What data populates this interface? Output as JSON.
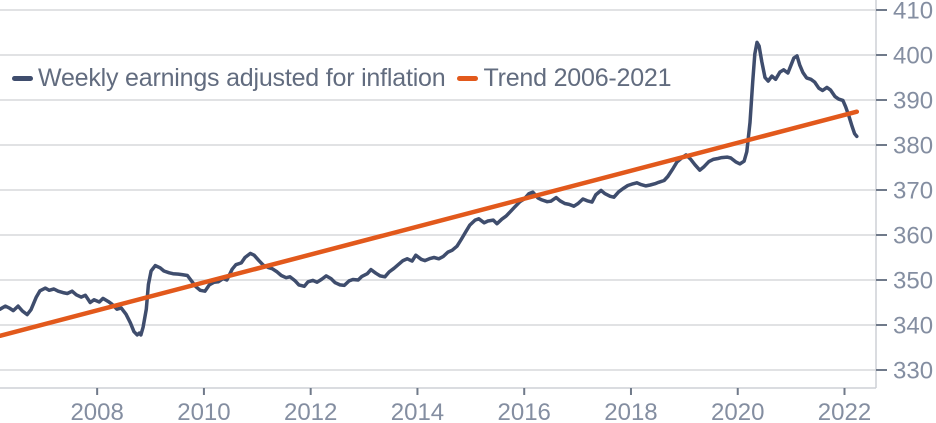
{
  "legend": {
    "series1_label": "Weekly earnings adjusted for inflation",
    "series2_label": "Trend 2006-2021"
  },
  "colors": {
    "earnings_line": "#3f4d6d",
    "trend_line": "#e2591c",
    "gridline": "#d7d9dc",
    "axis_line": "#cdd0d5",
    "tick": "#707a8a",
    "tick_label": "#848ea1",
    "legend_text": "#626c7f",
    "background": "#ffffff"
  },
  "chart_data": {
    "type": "line",
    "title": "",
    "xlabel": "",
    "ylabel": "",
    "grid": true,
    "legend_position": "top-left",
    "x_axis": {
      "range": [
        2006.18,
        2022.59
      ],
      "ticks": [
        2008,
        2010,
        2012,
        2014,
        2016,
        2018,
        2020,
        2022
      ],
      "tick_labels": [
        "2008",
        "2010",
        "2012",
        "2014",
        "2016",
        "2018",
        "2020",
        "2022"
      ]
    },
    "y_axis": {
      "side": "right",
      "range": [
        326,
        412.22
      ],
      "ticks": [
        330,
        340,
        350,
        360,
        370,
        380,
        390,
        400,
        410
      ],
      "tick_labels": [
        "330",
        "340",
        "350",
        "360",
        "370",
        "380",
        "390",
        "400",
        "410"
      ]
    },
    "series": [
      {
        "name": "Weekly earnings adjusted for inflation",
        "color": "#3f4d6d",
        "width": 3.5,
        "points": [
          [
            2006.18,
            343.5
          ],
          [
            2006.28,
            344.2
          ],
          [
            2006.35,
            343.8
          ],
          [
            2006.43,
            343.2
          ],
          [
            2006.52,
            344.2
          ],
          [
            2006.6,
            343.1
          ],
          [
            2006.69,
            342.3
          ],
          [
            2006.76,
            343.4
          ],
          [
            2006.86,
            346.2
          ],
          [
            2006.93,
            347.6
          ],
          [
            2007.03,
            348.2
          ],
          [
            2007.1,
            347.7
          ],
          [
            2007.19,
            348.0
          ],
          [
            2007.27,
            347.5
          ],
          [
            2007.36,
            347.2
          ],
          [
            2007.44,
            347.0
          ],
          [
            2007.53,
            347.5
          ],
          [
            2007.61,
            346.7
          ],
          [
            2007.7,
            346.2
          ],
          [
            2007.78,
            346.6
          ],
          [
            2007.87,
            345.0
          ],
          [
            2007.94,
            345.6
          ],
          [
            2008.04,
            345.1
          ],
          [
            2008.11,
            345.9
          ],
          [
            2008.21,
            345.2
          ],
          [
            2008.28,
            344.6
          ],
          [
            2008.37,
            343.5
          ],
          [
            2008.45,
            343.8
          ],
          [
            2008.54,
            342.4
          ],
          [
            2008.62,
            340.5
          ],
          [
            2008.69,
            338.5
          ],
          [
            2008.75,
            337.8
          ],
          [
            2008.79,
            338.2
          ],
          [
            2008.82,
            337.8
          ],
          [
            2008.86,
            339.5
          ],
          [
            2008.92,
            343.5
          ],
          [
            2008.96,
            349.0
          ],
          [
            2009.01,
            352.0
          ],
          [
            2009.09,
            353.2
          ],
          [
            2009.18,
            352.7
          ],
          [
            2009.25,
            352.0
          ],
          [
            2009.35,
            351.6
          ],
          [
            2009.42,
            351.4
          ],
          [
            2009.52,
            351.3
          ],
          [
            2009.59,
            351.2
          ],
          [
            2009.69,
            351.0
          ],
          [
            2009.76,
            349.9
          ],
          [
            2009.85,
            348.5
          ],
          [
            2009.93,
            347.7
          ],
          [
            2010.02,
            347.5
          ],
          [
            2010.1,
            348.9
          ],
          [
            2010.19,
            349.5
          ],
          [
            2010.27,
            349.6
          ],
          [
            2010.36,
            350.3
          ],
          [
            2010.43,
            350.0
          ],
          [
            2010.53,
            352.4
          ],
          [
            2010.6,
            353.4
          ],
          [
            2010.7,
            353.8
          ],
          [
            2010.77,
            355.0
          ],
          [
            2010.87,
            355.9
          ],
          [
            2010.94,
            355.5
          ],
          [
            2011.03,
            354.3
          ],
          [
            2011.11,
            353.3
          ],
          [
            2011.2,
            352.8
          ],
          [
            2011.28,
            352.5
          ],
          [
            2011.37,
            351.8
          ],
          [
            2011.45,
            351.0
          ],
          [
            2011.54,
            350.5
          ],
          [
            2011.61,
            350.7
          ],
          [
            2011.71,
            349.8
          ],
          [
            2011.78,
            348.9
          ],
          [
            2011.88,
            348.6
          ],
          [
            2011.95,
            349.6
          ],
          [
            2012.04,
            349.9
          ],
          [
            2012.12,
            349.5
          ],
          [
            2012.21,
            350.2
          ],
          [
            2012.29,
            350.9
          ],
          [
            2012.38,
            350.3
          ],
          [
            2012.46,
            349.4
          ],
          [
            2012.55,
            348.9
          ],
          [
            2012.63,
            348.8
          ],
          [
            2012.72,
            349.8
          ],
          [
            2012.79,
            350.1
          ],
          [
            2012.89,
            350.0
          ],
          [
            2012.96,
            350.8
          ],
          [
            2013.06,
            351.4
          ],
          [
            2013.13,
            352.3
          ],
          [
            2013.22,
            351.5
          ],
          [
            2013.3,
            350.9
          ],
          [
            2013.39,
            350.7
          ],
          [
            2013.47,
            351.8
          ],
          [
            2013.56,
            352.6
          ],
          [
            2013.64,
            353.4
          ],
          [
            2013.73,
            354.3
          ],
          [
            2013.81,
            354.7
          ],
          [
            2013.9,
            354.2
          ],
          [
            2013.97,
            355.5
          ],
          [
            2014.07,
            354.6
          ],
          [
            2014.14,
            354.3
          ],
          [
            2014.24,
            354.8
          ],
          [
            2014.31,
            355.0
          ],
          [
            2014.4,
            354.7
          ],
          [
            2014.48,
            355.2
          ],
          [
            2014.57,
            356.2
          ],
          [
            2014.65,
            356.6
          ],
          [
            2014.74,
            357.5
          ],
          [
            2014.82,
            359.0
          ],
          [
            2014.91,
            360.8
          ],
          [
            2014.98,
            362.2
          ],
          [
            2015.08,
            363.3
          ],
          [
            2015.15,
            363.6
          ],
          [
            2015.25,
            362.7
          ],
          [
            2015.32,
            363.1
          ],
          [
            2015.42,
            363.3
          ],
          [
            2015.49,
            362.5
          ],
          [
            2015.58,
            363.5
          ],
          [
            2015.66,
            364.2
          ],
          [
            2015.75,
            365.3
          ],
          [
            2015.83,
            366.3
          ],
          [
            2015.92,
            367.4
          ],
          [
            2016.0,
            368.0
          ],
          [
            2016.09,
            369.2
          ],
          [
            2016.16,
            369.5
          ],
          [
            2016.26,
            368.2
          ],
          [
            2016.33,
            367.8
          ],
          [
            2016.43,
            367.4
          ],
          [
            2016.5,
            367.5
          ],
          [
            2016.6,
            368.3
          ],
          [
            2016.67,
            367.6
          ],
          [
            2016.76,
            367.0
          ],
          [
            2016.84,
            366.8
          ],
          [
            2016.93,
            366.4
          ],
          [
            2017.01,
            367.0
          ],
          [
            2017.1,
            368.0
          ],
          [
            2017.18,
            367.6
          ],
          [
            2017.27,
            367.3
          ],
          [
            2017.34,
            368.9
          ],
          [
            2017.44,
            369.9
          ],
          [
            2017.51,
            369.2
          ],
          [
            2017.61,
            368.6
          ],
          [
            2017.68,
            368.4
          ],
          [
            2017.77,
            369.6
          ],
          [
            2017.85,
            370.3
          ],
          [
            2017.94,
            371.0
          ],
          [
            2018.02,
            371.3
          ],
          [
            2018.11,
            371.6
          ],
          [
            2018.19,
            371.2
          ],
          [
            2018.28,
            370.9
          ],
          [
            2018.36,
            371.1
          ],
          [
            2018.45,
            371.4
          ],
          [
            2018.52,
            371.7
          ],
          [
            2018.62,
            372.1
          ],
          [
            2018.69,
            373.0
          ],
          [
            2018.79,
            374.8
          ],
          [
            2018.86,
            376.2
          ],
          [
            2018.96,
            377.2
          ],
          [
            2019.03,
            377.8
          ],
          [
            2019.12,
            376.8
          ],
          [
            2019.2,
            375.6
          ],
          [
            2019.29,
            374.4
          ],
          [
            2019.37,
            375.2
          ],
          [
            2019.46,
            376.3
          ],
          [
            2019.54,
            376.8
          ],
          [
            2019.63,
            377.0
          ],
          [
            2019.7,
            377.2
          ],
          [
            2019.8,
            377.3
          ],
          [
            2019.87,
            377.1
          ],
          [
            2019.97,
            376.2
          ],
          [
            2020.04,
            375.8
          ],
          [
            2020.12,
            376.4
          ],
          [
            2020.17,
            378.5
          ],
          [
            2020.23,
            385.0
          ],
          [
            2020.28,
            394.0
          ],
          [
            2020.32,
            400.2
          ],
          [
            2020.36,
            402.8
          ],
          [
            2020.4,
            402.0
          ],
          [
            2020.45,
            398.5
          ],
          [
            2020.51,
            395.0
          ],
          [
            2020.57,
            394.2
          ],
          [
            2020.64,
            395.3
          ],
          [
            2020.71,
            394.6
          ],
          [
            2020.79,
            396.2
          ],
          [
            2020.86,
            396.7
          ],
          [
            2020.94,
            396.0
          ],
          [
            2020.99,
            397.5
          ],
          [
            2021.05,
            399.3
          ],
          [
            2021.11,
            399.8
          ],
          [
            2021.16,
            397.8
          ],
          [
            2021.22,
            396.1
          ],
          [
            2021.29,
            394.9
          ],
          [
            2021.37,
            394.6
          ],
          [
            2021.44,
            394.0
          ],
          [
            2021.52,
            392.6
          ],
          [
            2021.59,
            392.1
          ],
          [
            2021.67,
            392.8
          ],
          [
            2021.74,
            392.2
          ],
          [
            2021.82,
            390.8
          ],
          [
            2021.89,
            390.2
          ],
          [
            2021.97,
            389.9
          ],
          [
            2022.02,
            388.5
          ],
          [
            2022.08,
            386.5
          ],
          [
            2022.14,
            384.2
          ],
          [
            2022.19,
            382.5
          ],
          [
            2022.23,
            381.9
          ]
        ]
      },
      {
        "name": "Trend 2006-2021",
        "color": "#e2591c",
        "width": 4.5,
        "points": [
          [
            2006.18,
            337.6
          ],
          [
            2022.23,
            387.4
          ]
        ]
      }
    ]
  }
}
